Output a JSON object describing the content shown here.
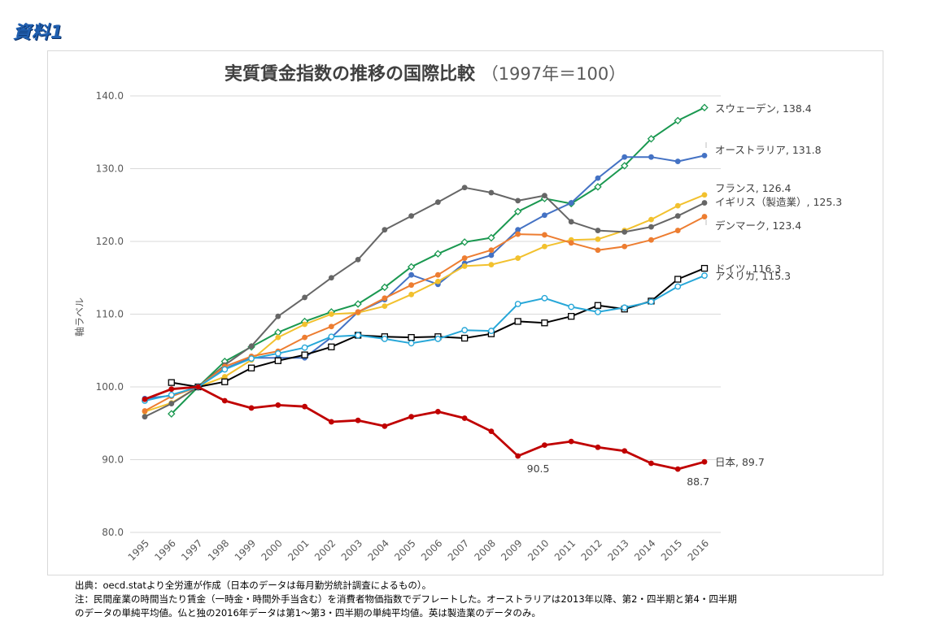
{
  "document_label": "資料1",
  "chart_data": {
    "type": "line",
    "title": "実質賃金指数の推移の国際比較",
    "subtitle": "（1997年＝100）",
    "ylabel": "軸ラベル",
    "xlabel": "",
    "ylim": [
      80,
      140
    ],
    "yticks": [
      "80.0",
      "90.0",
      "100.0",
      "110.0",
      "120.0",
      "130.0",
      "140.0"
    ],
    "grid": "horizontal",
    "categories": [
      "1995",
      "1996",
      "1997",
      "1998",
      "1999",
      "2000",
      "2001",
      "2002",
      "2003",
      "2004",
      "2005",
      "2006",
      "2007",
      "2008",
      "2009",
      "2010",
      "2011",
      "2012",
      "2013",
      "2014",
      "2015",
      "2016"
    ],
    "series": [
      {
        "name": "スウェーデン",
        "end_label": "スウェーデン, 138.4",
        "color": "#1a9850",
        "marker": "diamond",
        "values": [
          null,
          96.3,
          100,
          103.5,
          105.5,
          107.5,
          109.0,
          110.3,
          111.4,
          113.7,
          116.5,
          118.3,
          119.9,
          120.5,
          124.1,
          125.9,
          125.2,
          127.5,
          130.4,
          134.1,
          136.6,
          138.4
        ]
      },
      {
        "name": "オーストラリア",
        "end_label": "オーストラリア, 131.8",
        "color": "#4472c4",
        "marker": "circle",
        "values": [
          98.4,
          98.8,
          100,
          102.5,
          104.0,
          104.0,
          104.0,
          106.8,
          110.3,
          112.0,
          115.4,
          114.1,
          117.0,
          118.1,
          121.6,
          123.6,
          125.3,
          128.7,
          131.6,
          131.6,
          131.0,
          131.8
        ]
      },
      {
        "name": "フランス",
        "end_label": "フランス, 126.4",
        "color": "#f2c12e",
        "marker": "circle",
        "values": [
          96.6,
          97.8,
          100,
          101.4,
          103.7,
          106.8,
          108.6,
          110.0,
          110.2,
          111.1,
          112.7,
          114.5,
          116.6,
          116.8,
          117.7,
          119.3,
          120.2,
          120.3,
          121.5,
          123.0,
          124.9,
          126.4
        ]
      },
      {
        "name": "イギリス（製造業）",
        "end_label": "イギリス（製造業）, 125.3",
        "color": "#666666",
        "marker": "circle",
        "values": [
          95.9,
          97.7,
          100,
          103.0,
          105.6,
          109.7,
          112.3,
          115.0,
          117.5,
          121.6,
          123.5,
          125.4,
          127.4,
          126.7,
          125.6,
          126.3,
          122.7,
          121.5,
          121.3,
          122.0,
          123.5,
          125.3
        ]
      },
      {
        "name": "デンマーク",
        "end_label": "デンマーク, 123.4",
        "color": "#ed7d31",
        "marker": "circle",
        "values": [
          96.7,
          98.7,
          100,
          102.8,
          104.2,
          104.9,
          106.8,
          108.3,
          110.3,
          112.2,
          114.0,
          115.4,
          117.7,
          118.8,
          121.0,
          120.9,
          119.8,
          118.8,
          119.3,
          120.2,
          121.5,
          123.4
        ]
      },
      {
        "name": "ドイツ",
        "end_label": "ドイツ, 116.3",
        "color": "#000000",
        "marker": "square",
        "values": [
          null,
          100.6,
          100,
          100.7,
          102.6,
          103.6,
          104.4,
          105.5,
          107.1,
          106.9,
          106.8,
          106.9,
          106.7,
          107.3,
          109.0,
          108.8,
          109.7,
          111.2,
          110.7,
          111.8,
          114.8,
          116.3
        ]
      },
      {
        "name": "アメリカ",
        "end_label": "アメリカ, 115.3",
        "color": "#27a7d8",
        "marker": "circle",
        "values": [
          98.1,
          98.9,
          100,
          102.4,
          103.9,
          104.6,
          105.4,
          106.9,
          107.1,
          106.6,
          106.0,
          106.6,
          107.8,
          107.7,
          111.4,
          112.2,
          111.0,
          110.3,
          110.9,
          111.7,
          113.8,
          115.3
        ]
      },
      {
        "name": "日本",
        "end_label": "日本, 89.7",
        "color": "#c00000",
        "marker": "circle",
        "bold": true,
        "values": [
          98.3,
          99.7,
          100,
          98.1,
          97.1,
          97.5,
          97.3,
          95.2,
          95.4,
          94.6,
          95.9,
          96.6,
          95.7,
          93.9,
          90.5,
          92.0,
          92.5,
          91.7,
          91.2,
          89.5,
          88.7,
          89.7
        ]
      }
    ],
    "annotations": [
      {
        "label": "90.5",
        "series": "日本",
        "category": "2009",
        "anchor": "below-right"
      },
      {
        "label": "88.7",
        "series": "日本",
        "category": "2015",
        "anchor": "below-right"
      }
    ]
  },
  "footnotes": [
    "出典：oecd.statより全労連が作成（日本のデータは毎月勤労統計調査によるもの）。",
    "注：民間産業の時間当たり賃金（一時金・時間外手当含む）を消費者物価指数でデフレートした。オーストラリアは2013年以降、第2・四半期と第4・四半期",
    "のデータの単純平均値。仏と独の2016年データは第1～第3・四半期の単純平均値。英は製造業のデータのみ。"
  ]
}
